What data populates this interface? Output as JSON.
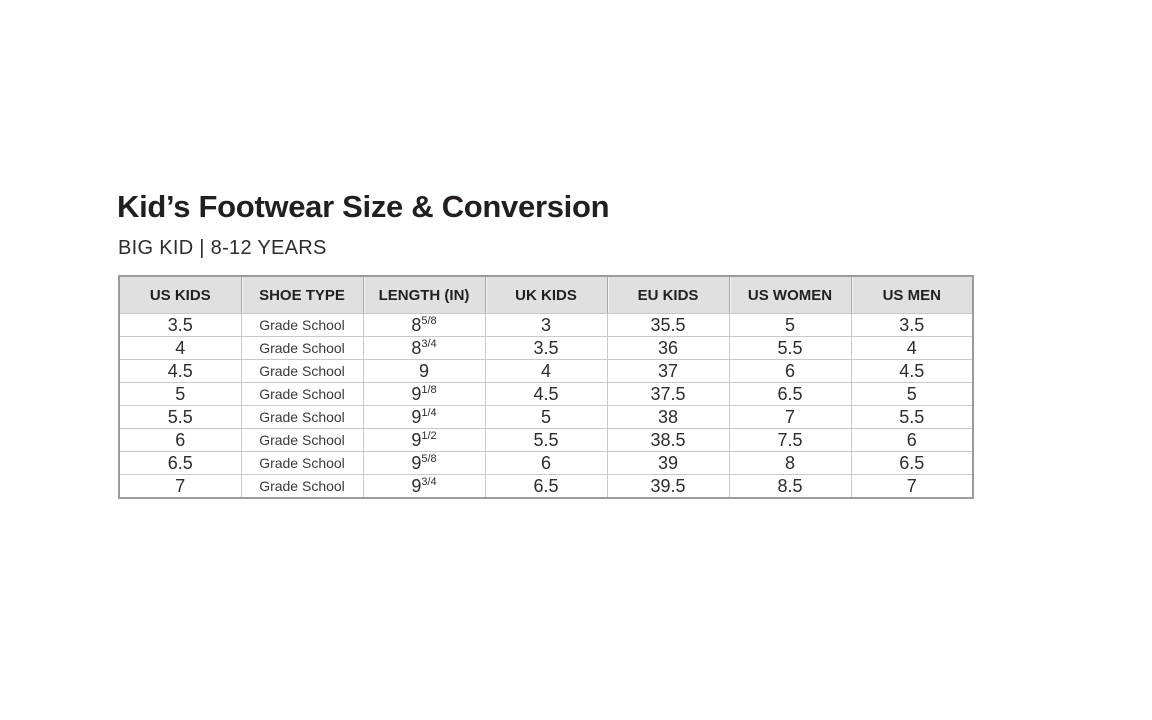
{
  "chart_data": {
    "type": "table",
    "title": "Kid’s Footwear Size & Conversion",
    "subtitle": "BIG KID | 8-12 YEARS",
    "columns": [
      "US KIDS",
      "SHOE TYPE",
      "LENGTH (IN)",
      "UK KIDS",
      "EU KIDS",
      "US WOMEN",
      "US MEN"
    ],
    "rows": [
      {
        "us_kids": "3.5",
        "shoe_type": "Grade School",
        "length_base": "8",
        "length_frac": "5/8",
        "uk_kids": "3",
        "eu_kids": "35.5",
        "us_women": "5",
        "us_men": "3.5"
      },
      {
        "us_kids": "4",
        "shoe_type": "Grade School",
        "length_base": "8",
        "length_frac": "3/4",
        "uk_kids": "3.5",
        "eu_kids": "36",
        "us_women": "5.5",
        "us_men": "4"
      },
      {
        "us_kids": "4.5",
        "shoe_type": "Grade School",
        "length_base": "9",
        "length_frac": "",
        "uk_kids": "4",
        "eu_kids": "37",
        "us_women": "6",
        "us_men": "4.5"
      },
      {
        "us_kids": "5",
        "shoe_type": "Grade School",
        "length_base": "9",
        "length_frac": "1/8",
        "uk_kids": "4.5",
        "eu_kids": "37.5",
        "us_women": "6.5",
        "us_men": "5"
      },
      {
        "us_kids": "5.5",
        "shoe_type": "Grade School",
        "length_base": "9",
        "length_frac": "1/4",
        "uk_kids": "5",
        "eu_kids": "38",
        "us_women": "7",
        "us_men": "5.5"
      },
      {
        "us_kids": "6",
        "shoe_type": "Grade School",
        "length_base": "9",
        "length_frac": "1/2",
        "uk_kids": "5.5",
        "eu_kids": "38.5",
        "us_women": "7.5",
        "us_men": "6"
      },
      {
        "us_kids": "6.5",
        "shoe_type": "Grade School",
        "length_base": "9",
        "length_frac": "5/8",
        "uk_kids": "6",
        "eu_kids": "39",
        "us_women": "8",
        "us_men": "6.5"
      },
      {
        "us_kids": "7",
        "shoe_type": "Grade School",
        "length_base": "9",
        "length_frac": "3/4",
        "uk_kids": "6.5",
        "eu_kids": "39.5",
        "us_women": "8.5",
        "us_men": "7"
      }
    ]
  },
  "colors": {
    "header_bg": "#e0e0e0",
    "outer_border": "#9c9c9c",
    "grid_line": "#c9c9c9",
    "title_text": "#231f20",
    "body_text": "#2d2d2d"
  }
}
